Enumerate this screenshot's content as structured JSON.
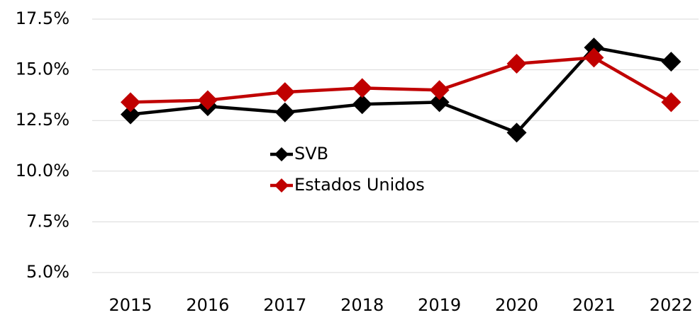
{
  "chart_data": {
    "type": "line",
    "categories": [
      "2015",
      "2016",
      "2017",
      "2018",
      "2019",
      "2020",
      "2021",
      "2022"
    ],
    "series": [
      {
        "name": "SVB",
        "color": "#000000",
        "values": [
          12.8,
          13.2,
          12.9,
          13.3,
          13.4,
          11.9,
          16.1,
          15.4
        ]
      },
      {
        "name": "Estados Unidos",
        "color": "#c00000",
        "values": [
          13.4,
          13.5,
          13.9,
          14.1,
          14.0,
          15.3,
          15.6,
          13.4
        ]
      }
    ],
    "ylim": [
      5,
      17.5
    ],
    "yticks": [
      {
        "value": 5,
        "label": "5.0%"
      },
      {
        "value": 7.5,
        "label": "7.5%"
      },
      {
        "value": 10,
        "label": "10.0%"
      },
      {
        "value": 12.5,
        "label": "12.5%"
      },
      {
        "value": 15,
        "label": "15.0%"
      },
      {
        "value": 17.5,
        "label": "17.5%"
      }
    ],
    "grid": true,
    "legend": "center"
  }
}
